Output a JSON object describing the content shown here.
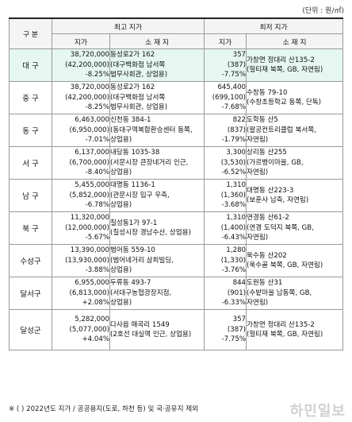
{
  "unit": "(단위 : 원/㎡)",
  "headers": {
    "region": "구 분",
    "highest": "최고 지가",
    "lowest": "최저 지가",
    "price": "지가",
    "location": "소 재 지"
  },
  "rows": [
    {
      "region": "대 구",
      "high_price": [
        "38,720,000",
        "(42,200,000)",
        "-8.25%"
      ],
      "high_loc": [
        "동성로2가 162",
        "(대구백화점 남서쪽",
        "법무사회관, 상업용)"
      ],
      "low_price": [
        "357",
        "(387)",
        "-7.75%"
      ],
      "low_loc": [
        "가창면 정대리 산135-2",
        "(헐티재 북쪽, GB, 자연림)"
      ]
    },
    {
      "region": "중 구",
      "high_price": [
        "38,720,000",
        "(42,200,000)",
        "-8.25%"
      ],
      "high_loc": [
        "동성로2가 162",
        "(대구백화점 남서쪽",
        "법무사회관, 상업용)"
      ],
      "low_price": [
        "645,400",
        "(699,100)",
        "-7.68%"
      ],
      "low_loc": [
        "수창동 79-10",
        "(수창초등학교 동쪽, 단독)"
      ]
    },
    {
      "region": "동 구",
      "high_price": [
        "6,463,000",
        "(6,950,000)",
        "-7.01%"
      ],
      "high_loc": [
        "신천동 384-1",
        "(동대구역복합환승센터 동쪽,",
        "상업용)"
      ],
      "low_price": [
        "822",
        "(837)",
        "-1.79%"
      ],
      "low_loc": [
        "도학동 산5",
        "(팔공컨트리클럽 북서쪽,",
        "자연림)"
      ]
    },
    {
      "region": "서 구",
      "high_price": [
        "6,137,000",
        "(6,700,000)",
        "-8.40%"
      ],
      "high_loc": [
        "내당동 1035-38",
        "(서문시장 큰장네거리 인근,",
        "상업용)"
      ],
      "low_price": [
        "3,300",
        "(3,530)",
        "-6.52%"
      ],
      "low_loc": [
        "상리동 산255",
        "(가르뱅이마을, GB,",
        "자연림)"
      ]
    },
    {
      "region": "남 구",
      "high_price": [
        "5,455,000",
        "(5,852,000)",
        "-6.78%"
      ],
      "high_loc": [
        "대명동 1136-1",
        "(관문시장 입구 우측,",
        "상업용)"
      ],
      "low_price": [
        "1,310",
        "(1,360)",
        "-3.68%"
      ],
      "low_loc": [
        "대명동 산223-3",
        "(보훈사 남측, 자연림)"
      ]
    },
    {
      "region": "북 구",
      "high_price": [
        "11,320,000",
        "(12,000,000)",
        "-5.67%"
      ],
      "high_loc": [
        "칠성동1가 97-1",
        "(칠성시장 경남수산, 상업용)"
      ],
      "low_price": [
        "1,310",
        "(1,400)",
        "-6.43%"
      ],
      "low_loc": [
        "연경동 산61-2",
        "(연경 도덕지 북쪽, GB,",
        "자연림)"
      ]
    },
    {
      "region": "수성구",
      "high_price": [
        "13,390,000",
        "(13,930,000)",
        "-3.88%"
      ],
      "high_loc": [
        "범어동 559-10",
        "(범어네거리 삼희빌딩,",
        "상업용)"
      ],
      "low_price": [
        "1,280",
        "(1,330)",
        "-3.76%"
      ],
      "low_loc": [
        "욱수동 산202",
        "(욱수골 북쪽, GB, 자연림)"
      ]
    },
    {
      "region": "달서구",
      "high_price": [
        "6,955,000",
        "(6,813,000)",
        "+2.08%"
      ],
      "high_loc": [
        "두류동 493-7",
        "(서대구농협광장지점,",
        "상업용)"
      ],
      "low_price": [
        "844",
        "(901)",
        "-6.33%"
      ],
      "low_loc": [
        "도원동 산31",
        "(수밭마을 남동쪽, GB,",
        "자연림)"
      ]
    },
    {
      "region": "달성군",
      "high_price": [
        "5,282,000",
        "(5,077,000)",
        "+4.04%"
      ],
      "high_loc": [
        "다사읍 매곡리 1549",
        "(2호선 대실역 인근, 상업용)"
      ],
      "low_price": [
        "357",
        "(387)",
        "-7.75%"
      ],
      "low_loc": [
        "가창면 정대리 산135-2",
        "(헐티재 북쪽, GB, 자연림)"
      ]
    }
  ],
  "note": "※ (  ) 2022년도 지가 / 공공용지(도로, 하천 등) 및 국·공유지 제외",
  "watermark": "하민일보"
}
